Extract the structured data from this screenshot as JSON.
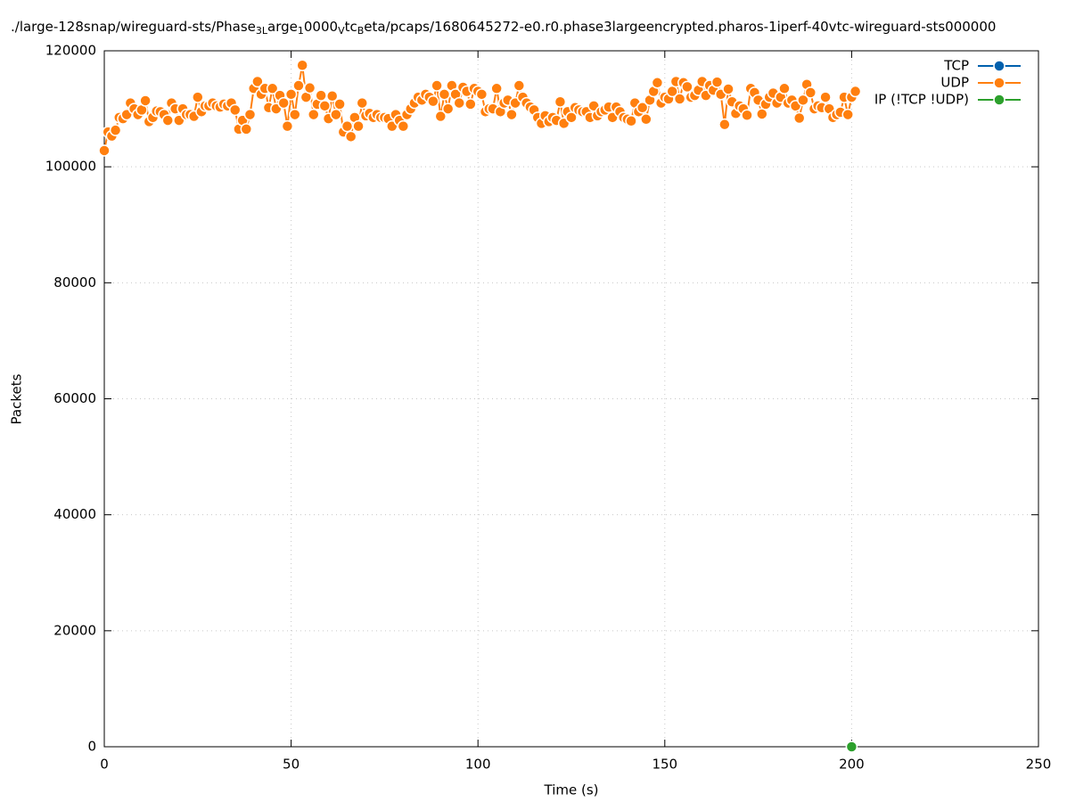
{
  "chart_data": {
    "type": "line",
    "title": [
      {
        "text": "./large-128snap/wireguard-sts/Phase"
      },
      {
        "text": "3L",
        "sub": true
      },
      {
        "text": "arge"
      },
      {
        "text": "1",
        "sub": true
      },
      {
        "text": "0000"
      },
      {
        "text": "V",
        "sub": true
      },
      {
        "text": "tc"
      },
      {
        "text": "B",
        "sub": true
      },
      {
        "text": "eta/pcaps/1680645272-e0.r0.phase3largeencrypted.pharos-1iperf-40vtc-wireguard-sts000000"
      }
    ],
    "xlabel": "Time (s)",
    "ylabel": "Packets",
    "xlim": [
      0,
      250
    ],
    "xticks": [
      0,
      50,
      100,
      150,
      200,
      250
    ],
    "ylim": [
      0,
      120000
    ],
    "yticks": [
      0,
      20000,
      40000,
      60000,
      80000,
      100000,
      120000
    ],
    "grid": true,
    "legend": "top-right",
    "series": [
      {
        "name": "TCP",
        "color": "#0060ad",
        "x": [],
        "values": []
      },
      {
        "name": "UDP",
        "color": "#ff7f0e",
        "x": [
          0,
          1,
          2,
          3,
          4,
          5,
          6,
          7,
          8,
          9,
          10,
          11,
          12,
          13,
          14,
          15,
          16,
          17,
          18,
          19,
          20,
          21,
          22,
          23,
          24,
          25,
          26,
          27,
          28,
          29,
          30,
          31,
          32,
          33,
          34,
          35,
          36,
          37,
          38,
          39,
          40,
          41,
          42,
          43,
          44,
          45,
          46,
          47,
          48,
          49,
          50,
          51,
          52,
          53,
          54,
          55,
          56,
          57,
          58,
          59,
          60,
          61,
          62,
          63,
          64,
          65,
          66,
          67,
          68,
          69,
          70,
          71,
          72,
          73,
          74,
          75,
          76,
          77,
          78,
          79,
          80,
          81,
          82,
          83,
          84,
          85,
          86,
          87,
          88,
          89,
          90,
          91,
          92,
          93,
          94,
          95,
          96,
          97,
          98,
          99,
          100,
          101,
          102,
          103,
          104,
          105,
          106,
          107,
          108,
          109,
          110,
          111,
          112,
          113,
          114,
          115,
          116,
          117,
          118,
          119,
          120,
          121,
          122,
          123,
          124,
          125,
          126,
          127,
          128,
          129,
          130,
          131,
          132,
          133,
          134,
          135,
          136,
          137,
          138,
          139,
          140,
          141,
          142,
          143,
          144,
          145,
          146,
          147,
          148,
          149,
          150,
          151,
          152,
          153,
          154,
          155,
          156,
          157,
          158,
          159,
          160,
          161,
          162,
          163,
          164,
          165,
          166,
          167,
          168,
          169,
          170,
          171,
          172,
          173,
          174,
          175,
          176,
          177,
          178,
          179,
          180,
          181,
          182,
          183,
          184,
          185,
          186,
          187,
          188,
          189,
          190,
          191,
          192,
          193,
          194,
          195,
          196,
          197,
          198,
          199,
          200,
          201
        ],
        "values": [
          102800,
          106000,
          105300,
          106300,
          108500,
          108300,
          109000,
          111000,
          110000,
          109000,
          109800,
          111400,
          107800,
          108500,
          109600,
          109500,
          109000,
          108000,
          111000,
          110000,
          108000,
          110000,
          109000,
          109000,
          108700,
          112000,
          109500,
          110500,
          110500,
          111000,
          110500,
          110300,
          110800,
          110500,
          111000,
          109800,
          106500,
          108000,
          106500,
          109000,
          113500,
          114700,
          112500,
          113500,
          110200,
          113500,
          110000,
          112300,
          111000,
          107000,
          112500,
          109000,
          114000,
          117500,
          112000,
          113600,
          109000,
          110800,
          112300,
          110500,
          108300,
          112200,
          109000,
          110800,
          106000,
          107000,
          105200,
          108500,
          107000,
          111000,
          108800,
          109200,
          108500,
          109000,
          108500,
          108500,
          108300,
          107000,
          109000,
          108000,
          107000,
          109000,
          110000,
          111000,
          112000,
          111500,
          112500,
          112000,
          111300,
          114000,
          108700,
          112500,
          110000,
          114000,
          112500,
          111000,
          113700,
          113000,
          110800,
          113500,
          113000,
          112500,
          109500,
          110000,
          110000,
          113500,
          109500,
          111000,
          111500,
          109000,
          111000,
          114000,
          112000,
          111000,
          110300,
          109800,
          108500,
          107500,
          108800,
          107800,
          108500,
          108000,
          111200,
          107500,
          109500,
          108500,
          110200,
          109800,
          109500,
          109500,
          108500,
          110500,
          108800,
          109500,
          109800,
          110300,
          108500,
          110300,
          109500,
          108500,
          108200,
          107900,
          111000,
          109500,
          110200,
          108200,
          111500,
          113000,
          114500,
          111000,
          112000,
          111700,
          113000,
          114700,
          111700,
          114500,
          113800,
          112000,
          112300,
          113200,
          114700,
          112300,
          114000,
          113200,
          114600,
          112500,
          107300,
          113400,
          111200,
          109200,
          110500,
          110000,
          108900,
          113500,
          112800,
          111500,
          109100,
          110800,
          112000,
          112700,
          111000,
          112000,
          113500,
          111000,
          111500,
          110500,
          108400,
          111500,
          114200,
          112800,
          110000,
          110500,
          110200,
          112000,
          110000,
          108500,
          109000,
          109400,
          112000,
          109000,
          112000,
          113000
        ]
      },
      {
        "name": "IP (!TCP  !UDP)",
        "color": "#2ca02c",
        "x": [
          200
        ],
        "values": [
          0
        ]
      }
    ]
  }
}
